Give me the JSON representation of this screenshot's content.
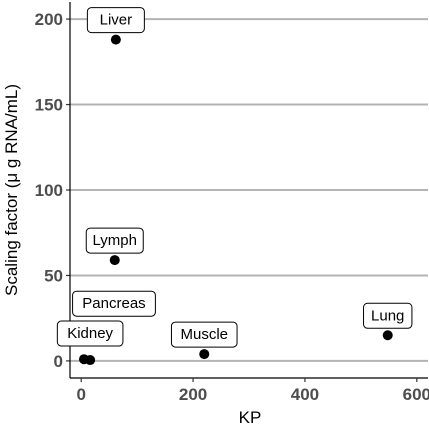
{
  "chart_data": {
    "type": "scatter",
    "xlabel": "KP",
    "ylabel": "Scaling factor (μ g RNA/mL)",
    "xlim": [
      -20,
      620
    ],
    "ylim": [
      -10,
      210
    ],
    "x_ticks": [
      0,
      200,
      400,
      600
    ],
    "y_ticks": [
      0,
      50,
      100,
      150,
      200
    ],
    "grid": "horizontal",
    "point_color": "#000000",
    "points": [
      {
        "label": "Liver",
        "x": 62,
        "y": 188
      },
      {
        "label": "Lymph",
        "x": 60,
        "y": 59
      },
      {
        "label": "Pancreas",
        "x": 5,
        "y": 1
      },
      {
        "label": "Kidney",
        "x": 16,
        "y": 0.5
      },
      {
        "label": "Muscle",
        "x": 220,
        "y": 4
      },
      {
        "label": "Lung",
        "x": 548,
        "y": 15
      }
    ]
  }
}
